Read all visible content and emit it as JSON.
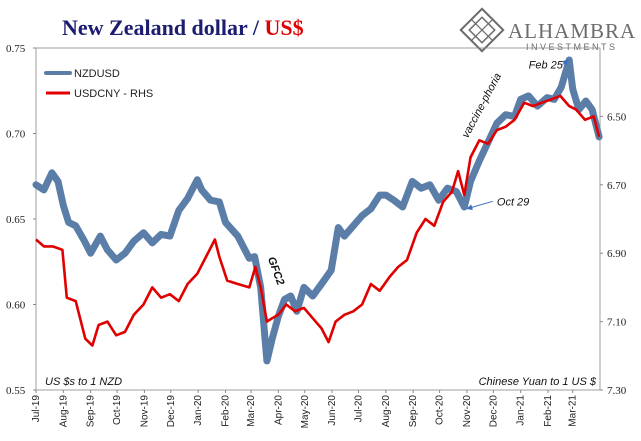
{
  "title": {
    "part1": "New Zealand dollar / ",
    "part2": "US$"
  },
  "logo": {
    "name": "ALHAMBRA",
    "sub": "INVESTMENTS"
  },
  "colors": {
    "nzd": "#5b7ea9",
    "cny": "#e00000",
    "title": "#1c1c70",
    "title_accent": "#e00000"
  },
  "chart_data": {
    "type": "line",
    "left_axis": {
      "label": "US $s to 1 NZD",
      "ylim": [
        0.55,
        0.75
      ],
      "ticks": [
        "0.55",
        "0.60",
        "0.65",
        "0.70",
        "0.75"
      ]
    },
    "right_axis": {
      "label": "Chinese Yuan to 1 US $",
      "ylim": [
        7.3,
        6.3
      ],
      "inverted": true,
      "ticks": [
        "6.50",
        "6.70",
        "6.90",
        "7.10",
        "7.30"
      ]
    },
    "x_ticks": [
      "Jul-19",
      "Aug-19",
      "Sep-19",
      "Oct-19",
      "Nov-19",
      "Dec-19",
      "Jan-20",
      "Feb-20",
      "Mar-20",
      "Apr-20",
      "May-20",
      "Jun-20",
      "Jul-20",
      "Aug-20",
      "Sep-20",
      "Oct-20",
      "Nov-20",
      "Dec-20",
      "Jan-21",
      "Feb-21",
      "Mar-21"
    ],
    "x_range": [
      "2019-07-01",
      "2021-04-01"
    ],
    "series": [
      {
        "name": "NZDUSD",
        "axis": "left",
        "points": [
          [
            "2019-07-01",
            0.67
          ],
          [
            "2019-07-10",
            0.667
          ],
          [
            "2019-07-19",
            0.677
          ],
          [
            "2019-07-26",
            0.672
          ],
          [
            "2019-08-01",
            0.658
          ],
          [
            "2019-08-07",
            0.648
          ],
          [
            "2019-08-15",
            0.646
          ],
          [
            "2019-08-25",
            0.637
          ],
          [
            "2019-09-01",
            0.63
          ],
          [
            "2019-09-12",
            0.64
          ],
          [
            "2019-09-20",
            0.632
          ],
          [
            "2019-09-30",
            0.626
          ],
          [
            "2019-10-10",
            0.63
          ],
          [
            "2019-10-20",
            0.637
          ],
          [
            "2019-10-31",
            0.642
          ],
          [
            "2019-11-10",
            0.636
          ],
          [
            "2019-11-20",
            0.641
          ],
          [
            "2019-11-30",
            0.64
          ],
          [
            "2019-12-10",
            0.655
          ],
          [
            "2019-12-20",
            0.662
          ],
          [
            "2019-12-31",
            0.673
          ],
          [
            "2020-01-05",
            0.667
          ],
          [
            "2020-01-15",
            0.661
          ],
          [
            "2020-01-25",
            0.66
          ],
          [
            "2020-02-01",
            0.648
          ],
          [
            "2020-02-15",
            0.64
          ],
          [
            "2020-02-28",
            0.627
          ],
          [
            "2020-03-05",
            0.628
          ],
          [
            "2020-03-12",
            0.61
          ],
          [
            "2020-03-19",
            0.567
          ],
          [
            "2020-03-25",
            0.58
          ],
          [
            "2020-04-01",
            0.593
          ],
          [
            "2020-04-08",
            0.603
          ],
          [
            "2020-04-15",
            0.605
          ],
          [
            "2020-04-22",
            0.596
          ],
          [
            "2020-04-30",
            0.61
          ],
          [
            "2020-05-10",
            0.605
          ],
          [
            "2020-05-20",
            0.612
          ],
          [
            "2020-05-31",
            0.62
          ],
          [
            "2020-06-08",
            0.645
          ],
          [
            "2020-06-15",
            0.64
          ],
          [
            "2020-06-25",
            0.646
          ],
          [
            "2020-07-05",
            0.652
          ],
          [
            "2020-07-15",
            0.656
          ],
          [
            "2020-07-25",
            0.664
          ],
          [
            "2020-08-01",
            0.664
          ],
          [
            "2020-08-10",
            0.661
          ],
          [
            "2020-08-20",
            0.657
          ],
          [
            "2020-08-31",
            0.672
          ],
          [
            "2020-09-10",
            0.668
          ],
          [
            "2020-09-20",
            0.67
          ],
          [
            "2020-09-30",
            0.661
          ],
          [
            "2020-10-10",
            0.668
          ],
          [
            "2020-10-20",
            0.666
          ],
          [
            "2020-10-29",
            0.657
          ],
          [
            "2020-11-05",
            0.672
          ],
          [
            "2020-11-15",
            0.684
          ],
          [
            "2020-11-25",
            0.695
          ],
          [
            "2020-12-05",
            0.706
          ],
          [
            "2020-12-15",
            0.711
          ],
          [
            "2020-12-25",
            0.71
          ],
          [
            "2021-01-01",
            0.72
          ],
          [
            "2021-01-10",
            0.722
          ],
          [
            "2021-01-20",
            0.716
          ],
          [
            "2021-01-31",
            0.721
          ],
          [
            "2021-02-08",
            0.72
          ],
          [
            "2021-02-16",
            0.727
          ],
          [
            "2021-02-25",
            0.743
          ],
          [
            "2021-03-01",
            0.726
          ],
          [
            "2021-03-08",
            0.714
          ],
          [
            "2021-03-16",
            0.719
          ],
          [
            "2021-03-23",
            0.714
          ],
          [
            "2021-03-31",
            0.698
          ]
        ]
      },
      {
        "name": "USDCNY - RHS",
        "axis": "right",
        "points": [
          [
            "2019-07-01",
            6.86
          ],
          [
            "2019-07-10",
            6.88
          ],
          [
            "2019-07-20",
            6.88
          ],
          [
            "2019-07-31",
            6.89
          ],
          [
            "2019-08-05",
            7.03
          ],
          [
            "2019-08-15",
            7.04
          ],
          [
            "2019-08-26",
            7.15
          ],
          [
            "2019-09-03",
            7.17
          ],
          [
            "2019-09-10",
            7.11
          ],
          [
            "2019-09-20",
            7.1
          ],
          [
            "2019-09-30",
            7.14
          ],
          [
            "2019-10-10",
            7.13
          ],
          [
            "2019-10-20",
            7.08
          ],
          [
            "2019-10-31",
            7.05
          ],
          [
            "2019-11-10",
            7.0
          ],
          [
            "2019-11-20",
            7.03
          ],
          [
            "2019-11-30",
            7.02
          ],
          [
            "2019-12-10",
            7.04
          ],
          [
            "2019-12-20",
            6.99
          ],
          [
            "2019-12-31",
            6.96
          ],
          [
            "2020-01-10",
            6.91
          ],
          [
            "2020-01-20",
            6.86
          ],
          [
            "2020-01-25",
            6.91
          ],
          [
            "2020-02-03",
            6.98
          ],
          [
            "2020-02-15",
            6.99
          ],
          [
            "2020-02-28",
            7.0
          ],
          [
            "2020-03-06",
            6.94
          ],
          [
            "2020-03-12",
            7.0
          ],
          [
            "2020-03-19",
            7.1
          ],
          [
            "2020-03-25",
            7.09
          ],
          [
            "2020-04-01",
            7.08
          ],
          [
            "2020-04-10",
            7.05
          ],
          [
            "2020-04-20",
            7.07
          ],
          [
            "2020-04-30",
            7.06
          ],
          [
            "2020-05-10",
            7.09
          ],
          [
            "2020-05-20",
            7.12
          ],
          [
            "2020-05-28",
            7.16
          ],
          [
            "2020-06-05",
            7.1
          ],
          [
            "2020-06-15",
            7.08
          ],
          [
            "2020-06-25",
            7.07
          ],
          [
            "2020-07-05",
            7.05
          ],
          [
            "2020-07-15",
            6.99
          ],
          [
            "2020-07-25",
            7.01
          ],
          [
            "2020-08-05",
            6.97
          ],
          [
            "2020-08-15",
            6.94
          ],
          [
            "2020-08-25",
            6.92
          ],
          [
            "2020-09-05",
            6.84
          ],
          [
            "2020-09-15",
            6.8
          ],
          [
            "2020-09-25",
            6.82
          ],
          [
            "2020-10-05",
            6.75
          ],
          [
            "2020-10-15",
            6.72
          ],
          [
            "2020-10-22",
            6.66
          ],
          [
            "2020-10-29",
            6.73
          ],
          [
            "2020-11-05",
            6.62
          ],
          [
            "2020-11-15",
            6.57
          ],
          [
            "2020-11-25",
            6.58
          ],
          [
            "2020-12-05",
            6.54
          ],
          [
            "2020-12-15",
            6.53
          ],
          [
            "2020-12-25",
            6.51
          ],
          [
            "2021-01-05",
            6.46
          ],
          [
            "2021-01-15",
            6.47
          ],
          [
            "2021-01-25",
            6.46
          ],
          [
            "2021-02-05",
            6.45
          ],
          [
            "2021-02-15",
            6.44
          ],
          [
            "2021-02-25",
            6.47
          ],
          [
            "2021-03-05",
            6.48
          ],
          [
            "2021-03-15",
            6.51
          ],
          [
            "2021-03-25",
            6.5
          ],
          [
            "2021-03-31",
            6.56
          ]
        ]
      }
    ],
    "annotations": [
      {
        "text": "GFC2",
        "x": "2020-03-20",
        "y": 0.627,
        "axis": "left",
        "color": "#e00000",
        "rotate": 70
      },
      {
        "text": "vaccine-phoria",
        "x": "2020-11-02",
        "y": 0.697,
        "axis": "left",
        "color": "#111",
        "rotate": -62
      },
      {
        "text": "Feb 25",
        "x": "2021-01-10",
        "y": 0.738,
        "axis": "left",
        "color": "#111",
        "arrow_to": [
          "2021-02-24",
          0.743
        ]
      },
      {
        "text": "Oct 29",
        "x": "2020-12-05",
        "y": 0.658,
        "axis": "left",
        "color": "#111",
        "arrow_to": [
          "2020-11-01",
          0.656
        ]
      }
    ]
  }
}
